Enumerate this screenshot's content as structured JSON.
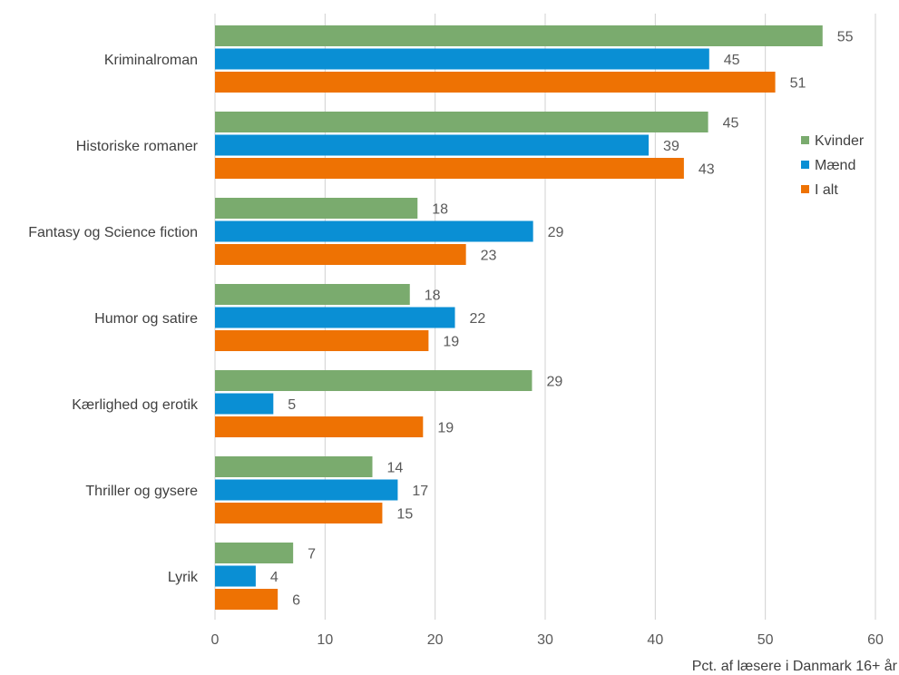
{
  "chart_data": {
    "type": "bar",
    "orientation": "horizontal",
    "categories": [
      "Kriminalroman",
      "Historiske romaner",
      "Fantasy og Science fiction",
      "Humor og satire",
      "Kærlighed og erotik",
      "Thriller og gysere",
      "Lyrik"
    ],
    "series": [
      {
        "name": "Kvinder",
        "color": "#7aab6e",
        "values": [
          55,
          45,
          18,
          18,
          29,
          14,
          7
        ]
      },
      {
        "name": "Mænd",
        "color": "#0a8fd4",
        "values": [
          45,
          39,
          29,
          22,
          5,
          17,
          4
        ]
      },
      {
        "name": "I alt",
        "color": "#ee7203",
        "values": [
          51,
          43,
          23,
          19,
          19,
          15,
          6
        ]
      }
    ],
    "display_values": [
      [
        55.2,
        44.8,
        18.4,
        17.7,
        28.8,
        14.3,
        7.1
      ],
      [
        44.9,
        39.4,
        28.9,
        21.8,
        5.3,
        16.6,
        3.7
      ],
      [
        50.9,
        42.6,
        22.8,
        19.4,
        18.9,
        15.2,
        5.7
      ]
    ],
    "xlabel": "Pct. af læsere i Danmark 16+ år",
    "ylabel": "",
    "xlim": [
      0,
      60
    ],
    "xticks": [
      0,
      10,
      20,
      30,
      40,
      50,
      60
    ],
    "grid": true,
    "legend_position": "right"
  }
}
